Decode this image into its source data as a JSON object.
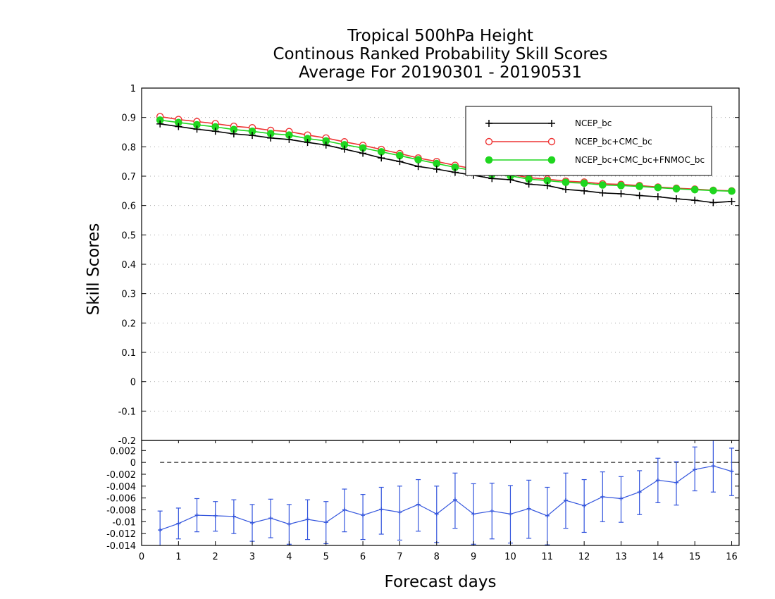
{
  "chart_data": [
    {
      "type": "line",
      "title_lines": [
        "Tropical 500hPa Height",
        "Continous Ranked Probability Skill Scores",
        "Average For 20190301 - 20190531"
      ],
      "xlabel": "Forecast days",
      "ylabel": "Skill Scores",
      "xlim": [
        0,
        16.2
      ],
      "ylim": [
        -0.2,
        1.0
      ],
      "y_ticks": [
        -0.2,
        -0.1,
        0,
        0.1,
        0.2,
        0.3,
        0.4,
        0.5,
        0.6,
        0.7,
        0.8,
        0.9,
        1
      ],
      "y_tick_labels": [
        "-0.2",
        "-0.1",
        "0",
        "0.1",
        "0.2",
        "0.3",
        "0.4",
        "0.5",
        "0.6",
        "0.7",
        "0.8",
        "0.9",
        "1"
      ],
      "grid": true,
      "legend_position": "top-right",
      "x": [
        0.5,
        1.0,
        1.5,
        2.0,
        2.5,
        3.0,
        3.5,
        4.0,
        4.5,
        5.0,
        5.5,
        6.0,
        6.5,
        7.0,
        7.5,
        8.0,
        8.5,
        9.0,
        9.5,
        10.0,
        10.5,
        11.0,
        11.5,
        12.0,
        12.5,
        13.0,
        13.5,
        14.0,
        14.5,
        15.0,
        15.5,
        16.0
      ],
      "series": [
        {
          "name": "NCEP_bc",
          "color": "#000000",
          "marker": "plus",
          "values": [
            0.878,
            0.869,
            0.86,
            0.853,
            0.844,
            0.839,
            0.83,
            0.825,
            0.815,
            0.806,
            0.792,
            0.778,
            0.762,
            0.75,
            0.733,
            0.724,
            0.713,
            0.703,
            0.692,
            0.688,
            0.673,
            0.668,
            0.655,
            0.65,
            0.643,
            0.64,
            0.634,
            0.63,
            0.623,
            0.618,
            0.61,
            0.614
          ]
        },
        {
          "name": "NCEP_bc+CMC_bc",
          "color": "#ee3333",
          "marker": "open-circle",
          "values": [
            0.903,
            0.893,
            0.886,
            0.879,
            0.87,
            0.865,
            0.856,
            0.852,
            0.84,
            0.83,
            0.817,
            0.805,
            0.791,
            0.777,
            0.762,
            0.75,
            0.737,
            0.725,
            0.712,
            0.706,
            0.695,
            0.69,
            0.683,
            0.68,
            0.674,
            0.672,
            0.668,
            0.663,
            0.659,
            0.656,
            0.652,
            0.65
          ]
        },
        {
          "name": "NCEP_bc+CMC_bc+FNMOC_bc",
          "color": "#1fd61f",
          "marker": "filled-circle",
          "values": [
            0.891,
            0.883,
            0.875,
            0.868,
            0.859,
            0.853,
            0.845,
            0.84,
            0.828,
            0.82,
            0.807,
            0.796,
            0.783,
            0.77,
            0.756,
            0.743,
            0.73,
            0.719,
            0.706,
            0.701,
            0.69,
            0.685,
            0.679,
            0.676,
            0.67,
            0.668,
            0.665,
            0.661,
            0.657,
            0.654,
            0.651,
            0.649
          ]
        }
      ]
    },
    {
      "type": "line",
      "xlabel": "Forecast days",
      "xlim": [
        0,
        16.2
      ],
      "ylim": [
        -0.014,
        0.0037
      ],
      "x_ticks": [
        0,
        1,
        2,
        3,
        4,
        5,
        6,
        7,
        8,
        9,
        10,
        11,
        12,
        13,
        14,
        15,
        16
      ],
      "x_tick_labels": [
        "0",
        "1",
        "2",
        "3",
        "4",
        "5",
        "6",
        "7",
        "8",
        "9",
        "10",
        "11",
        "12",
        "13",
        "14",
        "15",
        "16"
      ],
      "y_ticks": [
        -0.014,
        -0.012,
        -0.01,
        -0.008,
        -0.006,
        -0.004,
        -0.002,
        0,
        0.002
      ],
      "y_tick_labels": [
        "-0.014",
        "-0.012",
        "-0.01",
        "-0.008",
        "-0.006",
        "-0.004",
        "-0.002",
        "0",
        "0.002"
      ],
      "zero_line": "dashed",
      "x": [
        0.5,
        1.0,
        1.5,
        2.0,
        2.5,
        3.0,
        3.5,
        4.0,
        4.5,
        5.0,
        5.5,
        6.0,
        6.5,
        7.0,
        7.5,
        8.0,
        8.5,
        9.0,
        9.5,
        10.0,
        10.5,
        11.0,
        11.5,
        12.0,
        12.5,
        13.0,
        13.5,
        14.0,
        14.5,
        15.0,
        15.5,
        16.0
      ],
      "series": [
        {
          "color": "#3355dd",
          "marker": "plus",
          "values": [
            -0.0114,
            -0.0103,
            -0.0089,
            -0.009,
            -0.0091,
            -0.0102,
            -0.0094,
            -0.0104,
            -0.0096,
            -0.0101,
            -0.008,
            -0.0089,
            -0.0079,
            -0.0084,
            -0.0071,
            -0.0087,
            -0.0063,
            -0.0087,
            -0.0082,
            -0.0087,
            -0.0078,
            -0.009,
            -0.0064,
            -0.0073,
            -0.0058,
            -0.0061,
            -0.005,
            -0.003,
            -0.0034,
            -0.0012,
            -0.0006,
            -0.0015
          ],
          "error_low": [
            -0.0148,
            -0.0129,
            -0.0117,
            -0.0116,
            -0.012,
            -0.0133,
            -0.0127,
            -0.0138,
            -0.013,
            -0.0137,
            -0.0117,
            -0.013,
            -0.0121,
            -0.0131,
            -0.0116,
            -0.0135,
            -0.0111,
            -0.0138,
            -0.0129,
            -0.0136,
            -0.0128,
            -0.0139,
            -0.0111,
            -0.0118,
            -0.01,
            -0.0101,
            -0.0088,
            -0.0068,
            -0.0072,
            -0.0048,
            -0.005,
            -0.0056
          ],
          "error_high": [
            -0.0082,
            -0.0077,
            -0.0061,
            -0.0066,
            -0.0063,
            -0.0071,
            -0.0062,
            -0.0071,
            -0.0063,
            -0.0066,
            -0.0045,
            -0.0054,
            -0.0042,
            -0.004,
            -0.0029,
            -0.004,
            -0.0018,
            -0.0036,
            -0.0035,
            -0.0039,
            -0.003,
            -0.0042,
            -0.0018,
            -0.0029,
            -0.0016,
            -0.0024,
            -0.0014,
            0.0007,
            0.0001,
            0.0026,
            0.0037,
            0.0024
          ]
        }
      ]
    }
  ]
}
